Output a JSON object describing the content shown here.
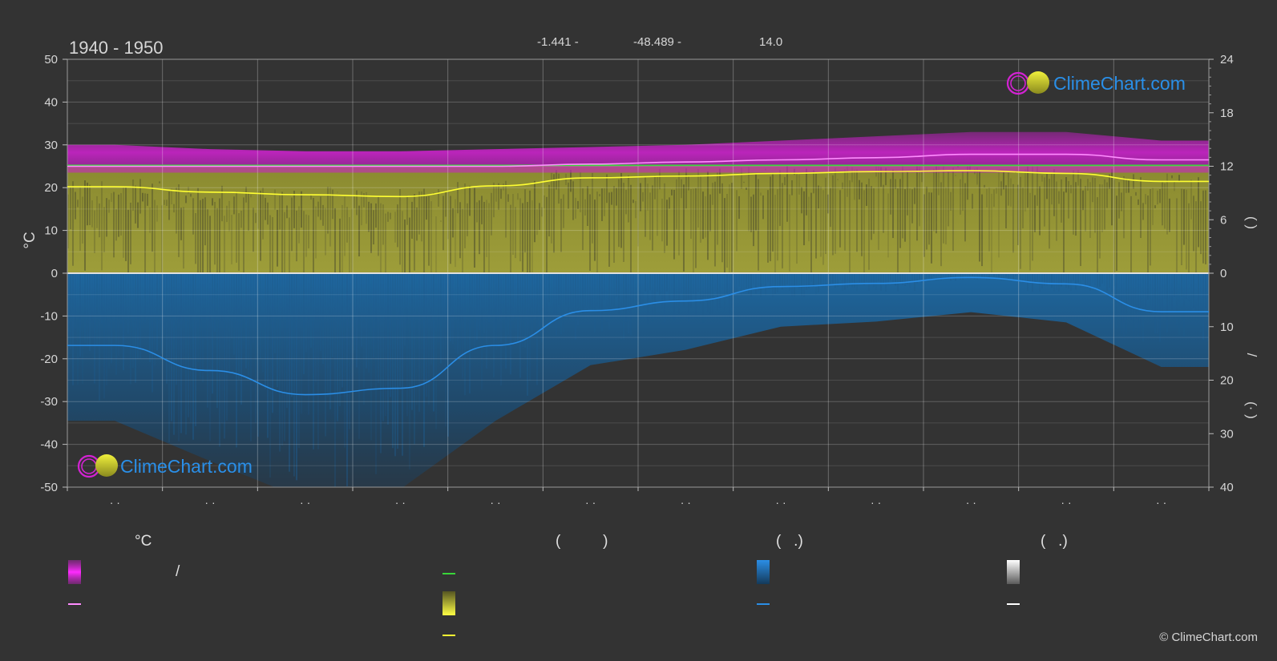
{
  "header": {
    "period": "1940 - 1950",
    "lat": "-1.441 -",
    "lon": "-48.489 -",
    "elev": "14.0"
  },
  "brand": {
    "logo_text": "ClimeChart.com",
    "copyright": "© ClimeChart.com"
  },
  "axes": {
    "left_unit": "°C",
    "left_ticks": [
      "50",
      "40",
      "30",
      "20",
      "10",
      "0",
      "-10",
      "-20",
      "-30",
      "-40",
      "-50"
    ],
    "right_top_ticks": [
      "24",
      "18",
      "12",
      "6",
      "0"
    ],
    "right_bottom_ticks": [
      "10",
      "20",
      "30",
      "40"
    ],
    "right_top_label": "(   )",
    "right_bottom_label_1": "/",
    "right_bottom_label_2": "(·   )",
    "month_labels": [
      "· ·",
      "· ·",
      "· ·",
      "· ·",
      "· ·",
      "· ·",
      "· ·",
      "· ·",
      "· ·",
      "· ·",
      "· ·",
      "· ·"
    ]
  },
  "legend": {
    "col1_head": "°C",
    "col1_slash": "/",
    "col2_head": "(          )",
    "col3_head": "(   .)",
    "col4_head": "(   .)"
  },
  "colors": {
    "background": "#333333",
    "temp_band": "#c81ec8",
    "temp_mean": "#ff8cff",
    "daylight": "#39d639",
    "sunshine_band": "#9a9a36",
    "sunshine_line": "#ffff33",
    "rain_band": "#1d5f94",
    "rain_line": "#2b8ee6",
    "grid": "#5a5a5a",
    "logo_blue": "#2a8fe8"
  },
  "chart_data": {
    "type": "area",
    "period": "1940 - 1950",
    "categories": [
      "",
      "",
      "",
      "",
      "",
      "",
      "",
      "",
      "",
      "",
      "",
      ""
    ],
    "ylim_left": [
      -50,
      50
    ],
    "ylim_right_top": [
      0,
      24
    ],
    "ylim_right_bottom": [
      0,
      40
    ],
    "series": [
      {
        "values": [
          25.0,
          25.0,
          25.0,
          25.0,
          25.0,
          25.5,
          26.0,
          26.5,
          27.0,
          27.8,
          27.8,
          26.5
        ],
        "range_min": [
          23.5,
          23.5,
          23.5,
          23.5,
          23.5,
          23.5,
          23.5,
          23.5,
          23.5,
          23.5,
          23.5,
          23.5
        ],
        "range_max": [
          30,
          29,
          28.5,
          28.5,
          29,
          29.5,
          30,
          31,
          32,
          33,
          33,
          31
        ]
      },
      {
        "values": [
          12.1,
          12.1,
          12.1,
          12.1,
          12.1,
          12.1,
          12.1,
          12.1,
          12.1,
          12.1,
          12.1,
          12.1
        ]
      },
      {
        "values": [
          9.7,
          9.1,
          8.8,
          8.6,
          9.8,
          10.7,
          10.9,
          11.2,
          11.4,
          11.5,
          11.2,
          10.3
        ]
      },
      {
        "values": [
          13.5,
          18.2,
          22.7,
          21.5,
          13.5,
          7.0,
          5.2,
          2.5,
          1.9,
          0.8,
          2.0,
          7.2
        ]
      }
    ]
  }
}
